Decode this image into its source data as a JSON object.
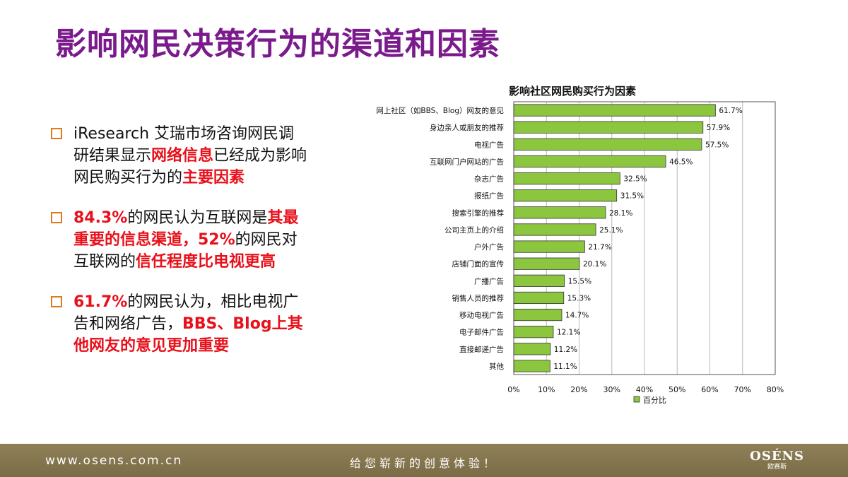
{
  "title": "影响网民决策行为的渠道和因素",
  "bullets": [
    {
      "segments": [
        {
          "text": "iResearch 艾瑞市场咨询网民调研结果显示",
          "highlight": false
        },
        {
          "text": "网络信息",
          "highlight": true
        },
        {
          "text": "已经成为影响网民购买行为的",
          "highlight": false
        },
        {
          "text": "主要因素",
          "highlight": true
        }
      ]
    },
    {
      "segments": [
        {
          "text": "84.3%",
          "highlight": true
        },
        {
          "text": "的网民认为互联网是",
          "highlight": false
        },
        {
          "text": "其最重要的信息渠道，52%",
          "highlight": true
        },
        {
          "text": "的网民对互联网的",
          "highlight": false
        },
        {
          "text": "信任程度比电视更高",
          "highlight": true
        }
      ]
    },
    {
      "segments": [
        {
          "text": "61.7%",
          "highlight": true
        },
        {
          "text": "的网民认为，相比电视广告和网络广告，",
          "highlight": false
        },
        {
          "text": "BBS、Blog上其他网友的意见更加重要",
          "highlight": true
        }
      ]
    }
  ],
  "chart_data": {
    "type": "bar",
    "orientation": "horizontal",
    "title": "影响社区网民购买行为因素",
    "categories": [
      "网上社区（如BBS、Blog）网友的意见",
      "身边亲人或朋友的推荐",
      "电视广告",
      "互联网门户网站的广告",
      "杂志广告",
      "报纸广告",
      "搜索引擎的推荐",
      "公司主页上的介绍",
      "户外广告",
      "店铺门面的宣传",
      "广播广告",
      "销售人员的推荐",
      "移动电视广告",
      "电子邮件广告",
      "直接邮递广告",
      "其他"
    ],
    "values": [
      61.7,
      57.9,
      57.5,
      46.5,
      32.5,
      31.5,
      28.1,
      25.1,
      21.7,
      20.1,
      15.5,
      15.3,
      14.7,
      12.1,
      11.2,
      11.1
    ],
    "value_labels": [
      "61.7%",
      "57.9%",
      "57.5%",
      "46.5%",
      "32.5%",
      "31.5%",
      "28.1%",
      "25.1%",
      "21.7%",
      "20.1%",
      "15.5%",
      "15.3%",
      "14.7%",
      "12.1%",
      "11.2%",
      "11.1%"
    ],
    "xlim": [
      0,
      80
    ],
    "xticks": [
      "0%",
      "10%",
      "20%",
      "30%",
      "40%",
      "50%",
      "60%",
      "70%",
      "80%"
    ],
    "grid": true,
    "legend": {
      "label": "百分比",
      "placement": "bottom"
    },
    "bar_color": "#8cc63f"
  },
  "footer": {
    "url": "www.osens.com.cn",
    "slogan": "给您崭新的创意体验！",
    "logo_brand": "OSÉNS",
    "logo_sub": "欧赛斯"
  }
}
